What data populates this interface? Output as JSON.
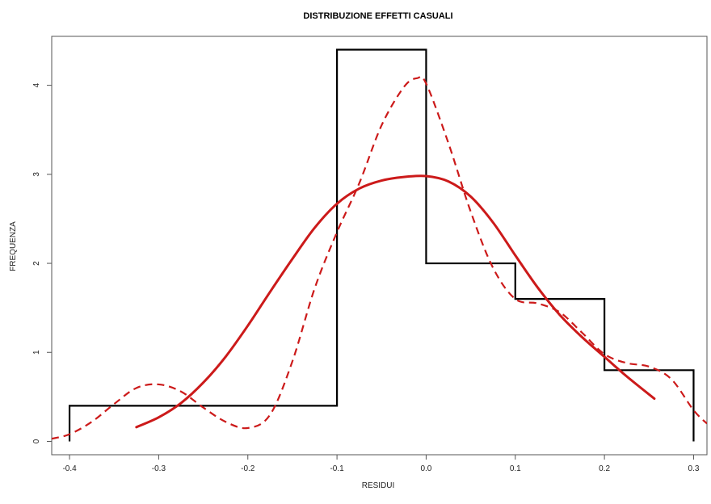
{
  "chart_data": {
    "type": "histogram",
    "title": "DISTRIBUZIONE EFFETTI CASUALI",
    "xlabel": "RESIDUI",
    "ylabel": "FREQUENZA",
    "xlim": [
      -0.42,
      0.315
    ],
    "ylim": [
      -0.15,
      4.55
    ],
    "xticks": [
      -0.4,
      -0.3,
      -0.2,
      -0.1,
      0.0,
      0.1,
      0.2,
      0.3
    ],
    "xtick_labels": [
      "-0.4",
      "-0.3",
      "-0.2",
      "-0.1",
      "0.0",
      "0.1",
      "0.2",
      "0.3"
    ],
    "yticks": [
      0,
      1,
      2,
      3,
      4
    ],
    "ytick_labels": [
      "0",
      "1",
      "2",
      "3",
      "4"
    ],
    "grid": false,
    "histogram": {
      "color": "#000000",
      "bins": [
        {
          "x0": -0.4,
          "x1": -0.1,
          "value": 0.4
        },
        {
          "x0": -0.1,
          "x1": 0.0,
          "value": 4.4
        },
        {
          "x0": 0.0,
          "x1": 0.1,
          "value": 2.0
        },
        {
          "x0": 0.1,
          "x1": 0.2,
          "value": 1.6
        },
        {
          "x0": 0.2,
          "x1": 0.3,
          "value": 0.8
        }
      ]
    },
    "series": [
      {
        "style": "solid",
        "color": "#cc1a1a",
        "x": [
          -0.325,
          -0.3,
          -0.275,
          -0.25,
          -0.225,
          -0.2,
          -0.175,
          -0.15,
          -0.125,
          -0.1,
          -0.075,
          -0.05,
          -0.025,
          0.0,
          0.025,
          0.05,
          0.075,
          0.1,
          0.125,
          0.15,
          0.175,
          0.2,
          0.225,
          0.256
        ],
        "y": [
          0.16,
          0.27,
          0.43,
          0.66,
          0.95,
          1.3,
          1.68,
          2.05,
          2.4,
          2.67,
          2.84,
          2.93,
          2.97,
          2.98,
          2.92,
          2.75,
          2.46,
          2.09,
          1.73,
          1.42,
          1.17,
          0.95,
          0.73,
          0.48
        ]
      },
      {
        "style": "dashed",
        "color": "#cc1a1a",
        "x": [
          -0.42,
          -0.4,
          -0.375,
          -0.35,
          -0.325,
          -0.3,
          -0.275,
          -0.25,
          -0.225,
          -0.2,
          -0.175,
          -0.15,
          -0.125,
          -0.1,
          -0.075,
          -0.05,
          -0.025,
          -0.01,
          0.0,
          0.025,
          0.05,
          0.075,
          0.1,
          0.125,
          0.15,
          0.175,
          0.2,
          0.225,
          0.25,
          0.275,
          0.3,
          0.315
        ],
        "y": [
          0.03,
          0.08,
          0.22,
          0.42,
          0.6,
          0.64,
          0.56,
          0.38,
          0.22,
          0.15,
          0.3,
          0.9,
          1.72,
          2.35,
          2.9,
          3.55,
          3.98,
          4.08,
          4.02,
          3.35,
          2.58,
          1.95,
          1.6,
          1.55,
          1.45,
          1.22,
          0.98,
          0.88,
          0.84,
          0.7,
          0.35,
          0.2
        ]
      }
    ]
  }
}
